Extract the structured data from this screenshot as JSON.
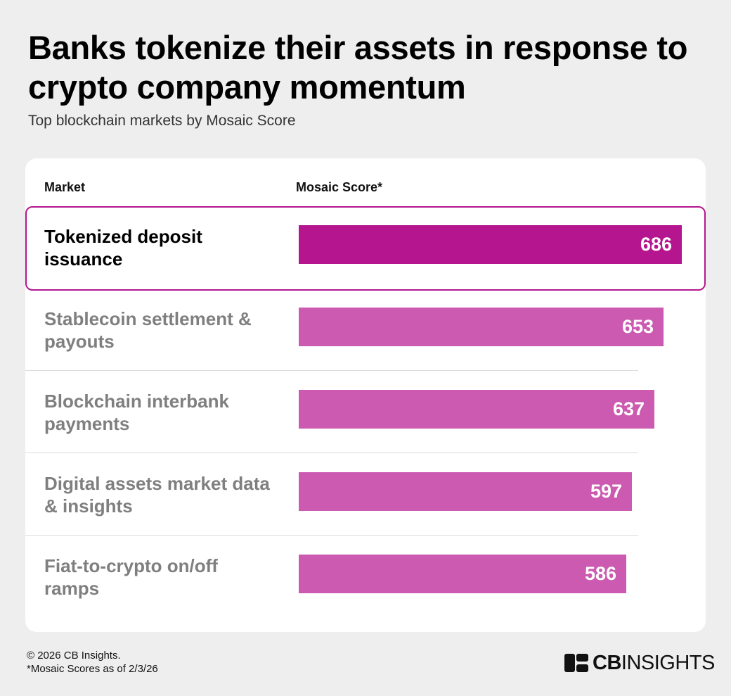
{
  "header": {
    "title": "Banks tokenize their assets in response to crypto company momentum",
    "subtitle": "Top blockchain markets by Mosaic Score"
  },
  "table": {
    "col_market": "Market",
    "col_score": "Mosaic Score*"
  },
  "chart_data": {
    "type": "bar",
    "orientation": "horizontal",
    "categories": [
      "Tokenized deposit issuance",
      "Stablecoin settlement & payouts",
      "Blockchain interbank payments",
      "Digital assets market data & insights",
      "Fiat-to-crypto on/off ramps"
    ],
    "label_lines": [
      [
        "Tokenized deposit",
        "issuance"
      ],
      [
        "Stablecoin settlement &",
        "payouts"
      ],
      [
        "Blockchain interbank",
        "payments"
      ],
      [
        "Digital assets market data",
        "& insights"
      ],
      [
        "Fiat-to-crypto on/off",
        "ramps"
      ]
    ],
    "values": [
      686,
      653,
      637,
      597,
      586
    ],
    "highlighted_index": 0,
    "highlight_color": "#b5168f",
    "bar_color": "#cb5ab0",
    "xlim": [
      0,
      686
    ],
    "title": "",
    "xlabel": "",
    "ylabel": ""
  },
  "footer": {
    "copyright": "© 2026 CB Insights.",
    "note": "*Mosaic Scores as of 2/3/26",
    "logo_bold": "CB",
    "logo_light": "INSIGHTS"
  }
}
